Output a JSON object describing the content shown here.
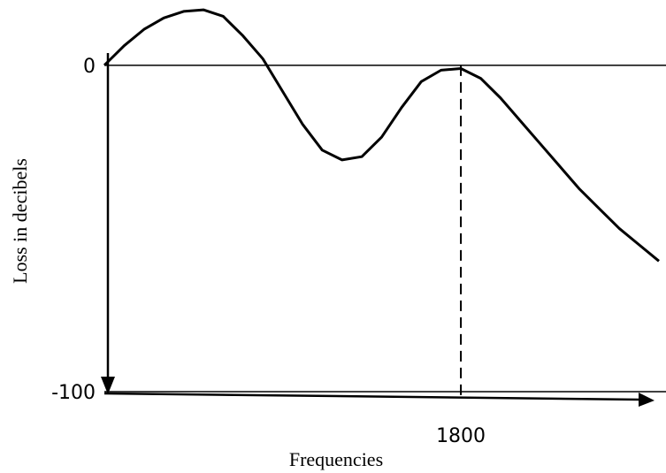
{
  "chart_data": {
    "type": "line",
    "x_label": "Frequencies",
    "y_label": "Loss in decibels",
    "x": [
      0,
      100,
      200,
      300,
      400,
      500,
      600,
      700,
      800,
      900,
      1000,
      1100,
      1200,
      1300,
      1400,
      1500,
      1600,
      1700,
      1800,
      1900,
      2000,
      2100,
      2200,
      2300,
      2400,
      2500,
      2600,
      2700,
      2800
    ],
    "series": [
      {
        "color": "#000000",
        "values": [
          0,
          6,
          11,
          14.5,
          16.5,
          17,
          15,
          9,
          2,
          -8,
          -18,
          -26,
          -29,
          -28,
          -22,
          -13,
          -5,
          -1.5,
          -1,
          -4,
          -10,
          -17,
          -24,
          -31,
          -38,
          -44,
          -50,
          -55,
          -60
        ]
      }
    ],
    "xlim": [
      0,
      2800
    ],
    "ylim": [
      -100,
      20
    ],
    "xticks": [
      1800
    ],
    "yticks": [
      -100,
      0
    ]
  }
}
